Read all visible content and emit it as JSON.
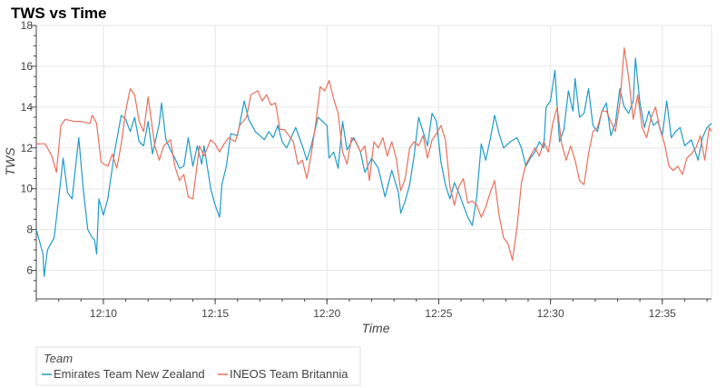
{
  "chart_data": {
    "type": "line",
    "title": "TWS vs Time",
    "xlabel": "Time",
    "ylabel": "TWS",
    "x_range_minutes": [
      0,
      30.2
    ],
    "ylim": [
      4.6,
      18
    ],
    "y_ticks": [
      6,
      8,
      10,
      12,
      14,
      16,
      18
    ],
    "x_ticks": [
      {
        "label": "12:10",
        "minute": 3.0
      },
      {
        "label": "12:15",
        "minute": 8.0
      },
      {
        "label": "12:20",
        "minute": 13.0
      },
      {
        "label": "12:25",
        "minute": 18.0
      },
      {
        "label": "12:30",
        "minute": 23.0
      },
      {
        "label": "12:35",
        "minute": 28.0
      }
    ],
    "grid": true,
    "legend": {
      "title": "Team",
      "placement": "bottom-left"
    },
    "series": [
      {
        "name": "Emirates Team New Zealand",
        "color": "#1f9bc9",
        "points": [
          [
            0,
            8
          ],
          [
            0.3,
            6.8
          ],
          [
            0.35,
            5.7
          ],
          [
            0.5,
            7
          ],
          [
            0.8,
            7.6
          ],
          [
            1.0,
            9.5
          ],
          [
            1.2,
            11.5
          ],
          [
            1.4,
            9.8
          ],
          [
            1.6,
            9.5
          ],
          [
            1.9,
            12.5
          ],
          [
            2.1,
            10
          ],
          [
            2.3,
            8
          ],
          [
            2.5,
            7.6
          ],
          [
            2.6,
            7.5
          ],
          [
            2.7,
            6.8
          ],
          [
            2.8,
            9.5
          ],
          [
            3.0,
            8.7
          ],
          [
            3.2,
            9.5
          ],
          [
            3.5,
            11.8
          ],
          [
            3.8,
            13.6
          ],
          [
            4.0,
            13.4
          ],
          [
            4.2,
            12.8
          ],
          [
            4.4,
            13.5
          ],
          [
            4.6,
            12.3
          ],
          [
            4.8,
            12.1
          ],
          [
            5.0,
            13.3
          ],
          [
            5.2,
            11.7
          ],
          [
            5.5,
            13.2
          ],
          [
            5.6,
            14.2
          ],
          [
            5.8,
            12.4
          ],
          [
            6.0,
            11.9
          ],
          [
            6.2,
            11.5
          ],
          [
            6.4,
            11
          ],
          [
            6.6,
            11.1
          ],
          [
            6.8,
            12.5
          ],
          [
            7.0,
            11.1
          ],
          [
            7.2,
            12.1
          ],
          [
            7.4,
            11.2
          ],
          [
            7.5,
            12.1
          ],
          [
            7.8,
            10
          ],
          [
            8.0,
            9.2
          ],
          [
            8.2,
            8.6
          ],
          [
            8.3,
            10.2
          ],
          [
            8.5,
            11.1
          ],
          [
            8.7,
            12.7
          ],
          [
            9.0,
            12.6
          ],
          [
            9.3,
            14.3
          ],
          [
            9.5,
            13.4
          ],
          [
            9.8,
            12.8
          ],
          [
            10.0,
            12.6
          ],
          [
            10.2,
            12.4
          ],
          [
            10.4,
            12.8
          ],
          [
            10.6,
            12.5
          ],
          [
            10.8,
            13.1
          ],
          [
            11.0,
            12.3
          ],
          [
            11.2,
            12.0
          ],
          [
            11.4,
            12.5
          ],
          [
            11.6,
            13.0
          ],
          [
            11.9,
            12.1
          ],
          [
            12.1,
            11.4
          ],
          [
            12.3,
            12.1
          ],
          [
            12.6,
            13.5
          ],
          [
            12.8,
            13.3
          ],
          [
            13.0,
            13.1
          ],
          [
            13.1,
            11.5
          ],
          [
            13.3,
            11.8
          ],
          [
            13.5,
            11.0
          ],
          [
            13.7,
            13.3
          ],
          [
            13.9,
            11.9
          ],
          [
            14.2,
            12.5
          ],
          [
            14.5,
            11.8
          ],
          [
            14.7,
            10.8
          ],
          [
            15.0,
            11.5
          ],
          [
            15.3,
            11.0
          ],
          [
            15.6,
            9.6
          ],
          [
            15.9,
            10.9
          ],
          [
            16.2,
            9.8
          ],
          [
            16.3,
            8.8
          ],
          [
            16.5,
            9.4
          ],
          [
            16.7,
            10.2
          ],
          [
            16.9,
            11.6
          ],
          [
            17.1,
            13.5
          ],
          [
            17.3,
            12.8
          ],
          [
            17.5,
            12.1
          ],
          [
            17.7,
            13.7
          ],
          [
            17.9,
            13.3
          ],
          [
            18.1,
            11.3
          ],
          [
            18.3,
            10.2
          ],
          [
            18.5,
            9.5
          ],
          [
            18.7,
            10.3
          ],
          [
            18.9,
            9.8
          ],
          [
            19.1,
            9.2
          ],
          [
            19.3,
            8.6
          ],
          [
            19.5,
            8.2
          ],
          [
            19.7,
            9.6
          ],
          [
            19.9,
            12.2
          ],
          [
            20.1,
            11.4
          ],
          [
            20.3,
            12.4
          ],
          [
            20.5,
            13.6
          ],
          [
            20.7,
            12.7
          ],
          [
            20.9,
            12.0
          ],
          [
            21.2,
            12.3
          ],
          [
            21.5,
            12.5
          ],
          [
            21.7,
            12.0
          ],
          [
            21.9,
            11.1
          ],
          [
            22.1,
            11.5
          ],
          [
            22.3,
            11.8
          ],
          [
            22.5,
            12.3
          ],
          [
            22.7,
            12.0
          ],
          [
            22.8,
            14.0
          ],
          [
            23.0,
            14.3
          ],
          [
            23.2,
            15.8
          ],
          [
            23.4,
            12.3
          ],
          [
            23.6,
            12.9
          ],
          [
            23.8,
            14.8
          ],
          [
            24.0,
            13.8
          ],
          [
            24.1,
            15.4
          ],
          [
            24.3,
            13.5
          ],
          [
            24.5,
            13.7
          ],
          [
            24.7,
            14.9
          ],
          [
            24.9,
            13.1
          ],
          [
            25.1,
            12.8
          ],
          [
            25.3,
            13.8
          ],
          [
            25.5,
            14.2
          ],
          [
            25.7,
            12.6
          ],
          [
            25.9,
            13.2
          ],
          [
            26.1,
            14.9
          ],
          [
            26.3,
            14.0
          ],
          [
            26.5,
            13.7
          ],
          [
            26.7,
            14.3
          ],
          [
            26.8,
            16.4
          ],
          [
            27.0,
            14.2
          ],
          [
            27.2,
            13.0
          ],
          [
            27.4,
            13.8
          ],
          [
            27.6,
            13.1
          ],
          [
            27.8,
            13.3
          ],
          [
            28.0,
            12.6
          ],
          [
            28.2,
            14.3
          ],
          [
            28.4,
            12.5
          ],
          [
            28.6,
            12.8
          ],
          [
            28.8,
            13.0
          ],
          [
            29.0,
            12.1
          ],
          [
            29.3,
            12.4
          ],
          [
            29.6,
            11.4
          ],
          [
            29.8,
            12.5
          ],
          [
            30.0,
            13.0
          ],
          [
            30.2,
            13.2
          ]
        ]
      },
      {
        "name": "INEOS Team Britannia",
        "color": "#e8705b",
        "points": [
          [
            0,
            12.2
          ],
          [
            0.4,
            12.2
          ],
          [
            0.7,
            11.6
          ],
          [
            0.9,
            10.8
          ],
          [
            1.1,
            13.1
          ],
          [
            1.3,
            13.4
          ],
          [
            1.7,
            13.3
          ],
          [
            2.0,
            13.3
          ],
          [
            2.4,
            13.2
          ],
          [
            2.5,
            13.6
          ],
          [
            2.7,
            13.2
          ],
          [
            2.9,
            11.3
          ],
          [
            3.2,
            11.1
          ],
          [
            3.4,
            11.7
          ],
          [
            3.6,
            11.0
          ],
          [
            3.8,
            12.2
          ],
          [
            4.0,
            13.8
          ],
          [
            4.2,
            14.9
          ],
          [
            4.4,
            14.6
          ],
          [
            4.6,
            13.3
          ],
          [
            4.8,
            12.8
          ],
          [
            5.0,
            14.5
          ],
          [
            5.3,
            12.1
          ],
          [
            5.5,
            11.4
          ],
          [
            5.7,
            12.1
          ],
          [
            6.0,
            12.4
          ],
          [
            6.2,
            11.1
          ],
          [
            6.4,
            10.4
          ],
          [
            6.6,
            10.7
          ],
          [
            6.8,
            9.6
          ],
          [
            7.0,
            9.5
          ],
          [
            7.3,
            12.1
          ],
          [
            7.5,
            11.6
          ],
          [
            7.8,
            12.4
          ],
          [
            8.0,
            12.2
          ],
          [
            8.2,
            11.8
          ],
          [
            8.4,
            12.2
          ],
          [
            8.6,
            12.5
          ],
          [
            8.9,
            12.3
          ],
          [
            9.1,
            13.1
          ],
          [
            9.4,
            13.5
          ],
          [
            9.6,
            14.6
          ],
          [
            9.9,
            14.8
          ],
          [
            10.1,
            14.3
          ],
          [
            10.3,
            14.6
          ],
          [
            10.5,
            14.1
          ],
          [
            10.7,
            14.2
          ],
          [
            10.9,
            12.9
          ],
          [
            11.1,
            12.9
          ],
          [
            11.3,
            12.6
          ],
          [
            11.5,
            12.3
          ],
          [
            11.7,
            11.2
          ],
          [
            11.9,
            11.4
          ],
          [
            12.1,
            10.5
          ],
          [
            12.3,
            11.7
          ],
          [
            12.5,
            13.2
          ],
          [
            12.7,
            15.0
          ],
          [
            12.9,
            14.8
          ],
          [
            13.1,
            15.3
          ],
          [
            13.3,
            14.4
          ],
          [
            13.5,
            13.7
          ],
          [
            13.7,
            11.8
          ],
          [
            13.9,
            11.2
          ],
          [
            14.1,
            12.5
          ],
          [
            14.3,
            12.3
          ],
          [
            14.5,
            11.8
          ],
          [
            14.7,
            12.1
          ],
          [
            14.9,
            10.4
          ],
          [
            15.1,
            12.3
          ],
          [
            15.3,
            12.0
          ],
          [
            15.5,
            12.5
          ],
          [
            15.7,
            11.6
          ],
          [
            15.9,
            12.3
          ],
          [
            16.1,
            11.5
          ],
          [
            16.3,
            9.9
          ],
          [
            16.5,
            10.5
          ],
          [
            16.7,
            12.0
          ],
          [
            16.9,
            12.3
          ],
          [
            17.1,
            12.1
          ],
          [
            17.3,
            12.6
          ],
          [
            17.5,
            11.5
          ],
          [
            17.7,
            12.4
          ],
          [
            17.9,
            12.7
          ],
          [
            18.1,
            13.1
          ],
          [
            18.3,
            12.4
          ],
          [
            18.5,
            10.1
          ],
          [
            18.7,
            9.2
          ],
          [
            18.9,
            10.1
          ],
          [
            19.1,
            10.5
          ],
          [
            19.3,
            9.3
          ],
          [
            19.5,
            9.4
          ],
          [
            19.7,
            9.2
          ],
          [
            19.9,
            8.6
          ],
          [
            20.1,
            9.1
          ],
          [
            20.3,
            9.8
          ],
          [
            20.5,
            10.4
          ],
          [
            20.7,
            8.7
          ],
          [
            20.9,
            7.6
          ],
          [
            21.1,
            7.3
          ],
          [
            21.3,
            6.5
          ],
          [
            21.5,
            8.1
          ],
          [
            21.7,
            10.3
          ],
          [
            21.9,
            11.2
          ],
          [
            22.1,
            11.6
          ],
          [
            22.3,
            12.0
          ],
          [
            22.5,
            11.6
          ],
          [
            22.7,
            12.3
          ],
          [
            22.9,
            11.8
          ],
          [
            23.1,
            13.2
          ],
          [
            23.3,
            14.0
          ],
          [
            23.5,
            12.2
          ],
          [
            23.7,
            11.4
          ],
          [
            23.9,
            12.1
          ],
          [
            24.1,
            11.4
          ],
          [
            24.3,
            10.4
          ],
          [
            24.5,
            10.2
          ],
          [
            24.7,
            11.7
          ],
          [
            24.9,
            12.8
          ],
          [
            25.1,
            13.0
          ],
          [
            25.3,
            13.8
          ],
          [
            25.5,
            13.8
          ],
          [
            25.7,
            13.3
          ],
          [
            25.9,
            12.8
          ],
          [
            26.1,
            14.2
          ],
          [
            26.3,
            16.9
          ],
          [
            26.5,
            15.4
          ],
          [
            26.7,
            13.4
          ],
          [
            26.9,
            14.6
          ],
          [
            27.1,
            13.0
          ],
          [
            27.3,
            12.5
          ],
          [
            27.5,
            13.5
          ],
          [
            27.7,
            14.0
          ],
          [
            27.9,
            12.9
          ],
          [
            28.1,
            12.2
          ],
          [
            28.3,
            11.1
          ],
          [
            28.5,
            10.9
          ],
          [
            28.7,
            11.1
          ],
          [
            28.9,
            10.7
          ],
          [
            29.1,
            11.5
          ],
          [
            29.3,
            11.7
          ],
          [
            29.5,
            12.0
          ],
          [
            29.7,
            12.6
          ],
          [
            29.9,
            11.4
          ],
          [
            30.1,
            13.0
          ],
          [
            30.2,
            12.8
          ]
        ]
      }
    ]
  }
}
